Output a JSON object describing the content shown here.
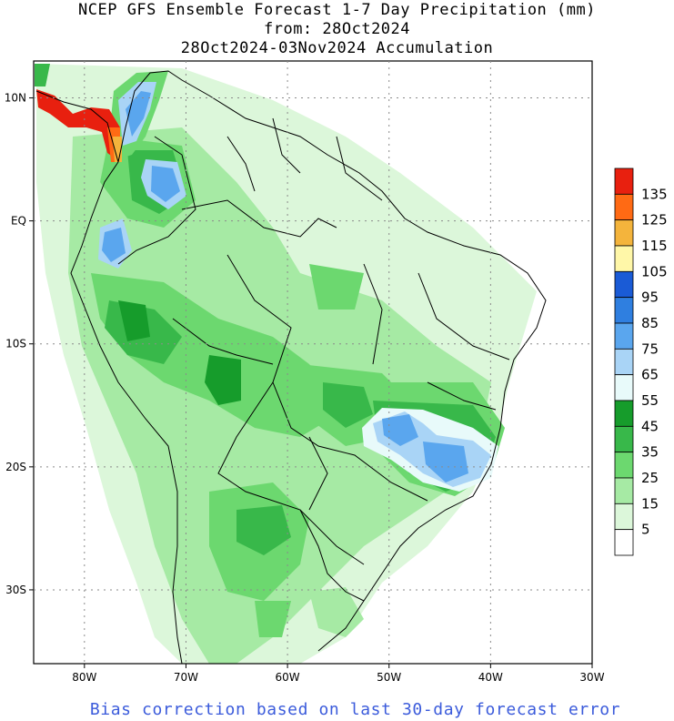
{
  "titles": {
    "line1": "NCEP GFS Ensemble Forecast 1-7 Day Precipitation (mm)",
    "line2": "from: 28Oct2024",
    "line3": "28Oct2024-03Nov2024 Accumulation"
  },
  "footer": "Bias correction based on last 30-day forecast error",
  "axes": {
    "lon_labels": [
      "80W",
      "70W",
      "60W",
      "50W",
      "40W",
      "30W"
    ],
    "lat_labels": [
      "10N",
      "EQ",
      "10S",
      "20S",
      "30S"
    ],
    "lon_range": [
      -85,
      -30
    ],
    "lat_range": [
      13,
      -36
    ]
  },
  "legend": {
    "labels": [
      "135",
      "125",
      "115",
      "105",
      "95",
      "85",
      "75",
      "65",
      "55",
      "45",
      "35",
      "25",
      "15",
      "5"
    ],
    "colors": [
      "#e8200f",
      "#ff6a14",
      "#f4b43c",
      "#fff7a8",
      "#1a5bd6",
      "#2f7fe0",
      "#5aa6ee",
      "#a9d4f6",
      "#e8fafa",
      "#169c2b",
      "#38b84a",
      "#6cd86f",
      "#a6eaa4",
      "#dcf7da",
      "#ffffff"
    ]
  },
  "colors": {
    "footer_text": "#3b5bdb",
    "grid": "#8a8a8a"
  }
}
